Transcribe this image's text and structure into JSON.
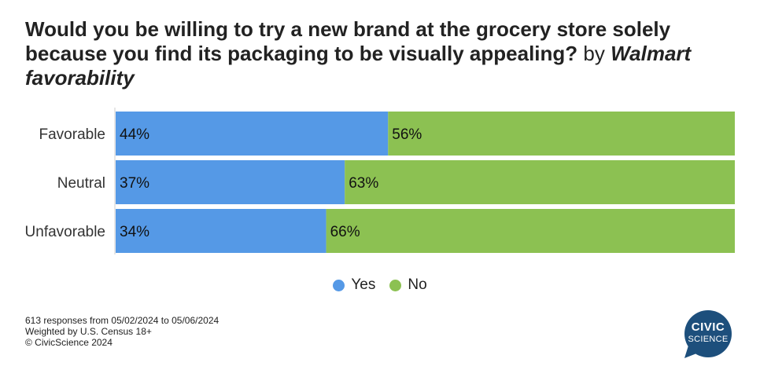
{
  "title": {
    "bold": "Would you be willing to try a new brand at the grocery store solely because you find its packaging to be visually appealing?",
    "plain": " by ",
    "italic": "Walmart favorability"
  },
  "chart_data": {
    "type": "bar",
    "stacked": true,
    "orientation": "horizontal",
    "categories": [
      "Favorable",
      "Neutral",
      "Unfavorable"
    ],
    "series": [
      {
        "name": "Yes",
        "values": [
          44,
          37,
          34
        ],
        "color": "#5599e6"
      },
      {
        "name": "No",
        "values": [
          56,
          63,
          66
        ],
        "color": "#8cc152"
      }
    ],
    "value_suffix": "%",
    "xlim": [
      0,
      100
    ],
    "legend_position": "bottom"
  },
  "legend": [
    {
      "label": "Yes",
      "color": "#5599e6"
    },
    {
      "label": "No",
      "color": "#8cc152"
    }
  ],
  "footer": {
    "line1": "613 responses from 05/02/2024 to 05/06/2024",
    "line2": "Weighted by U.S. Census 18+",
    "line3": "© CivicScience 2024"
  },
  "logo": {
    "line1": "CIVIC",
    "line2": "SCIENCE",
    "color": "#1d4f7c"
  }
}
